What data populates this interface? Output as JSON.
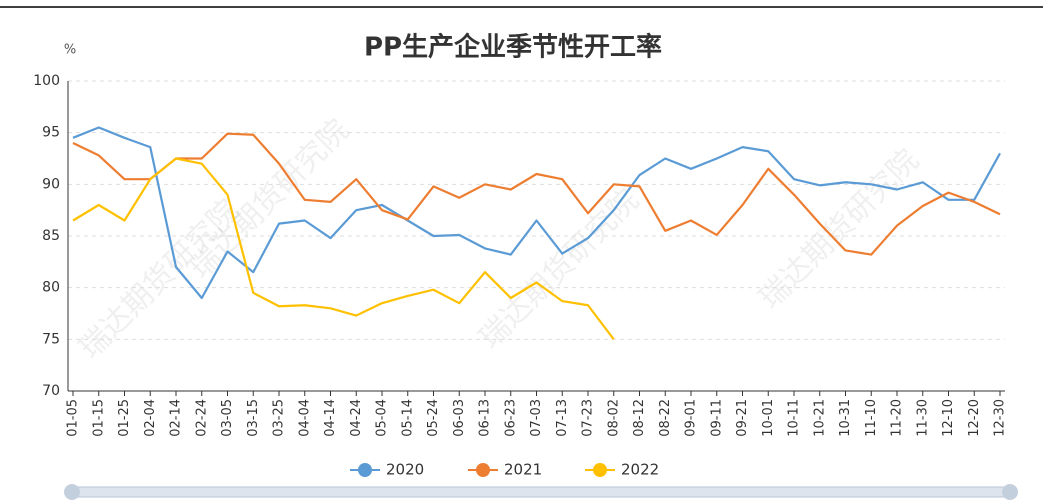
{
  "chart_data": {
    "type": "line",
    "title": "PP生产企业季节性开工率",
    "y_unit": "%",
    "watermark": "瑞达期货研究院",
    "categories": [
      "01-05",
      "01-15",
      "01-25",
      "02-04",
      "02-14",
      "02-24",
      "03-05",
      "03-15",
      "03-25",
      "04-04",
      "04-14",
      "04-24",
      "05-04",
      "05-14",
      "05-24",
      "06-03",
      "06-13",
      "06-23",
      "07-03",
      "07-13",
      "07-23",
      "08-02",
      "08-12",
      "08-22",
      "09-01",
      "09-11",
      "09-21",
      "10-01",
      "10-11",
      "10-21",
      "10-31",
      "11-10",
      "11-20",
      "11-30",
      "12-10",
      "12-20",
      "12-30"
    ],
    "series": [
      {
        "name": "2020",
        "color": "#5b9bd5",
        "values": [
          94.5,
          95.5,
          94.5,
          93.6,
          82,
          79,
          83.5,
          81.5,
          86.2,
          86.5,
          84.8,
          87.5,
          88,
          86.5,
          85,
          85.1,
          83.8,
          83.2,
          86.5,
          83.3,
          84.8,
          87.5,
          90.9,
          92.5,
          91.5,
          92.5,
          93.6,
          93.2,
          90.5,
          89.9,
          90.2,
          90,
          89.5,
          90.2,
          88.5,
          88.5,
          93
        ]
      },
      {
        "name": "2021",
        "color": "#ed7d31",
        "values": [
          94,
          92.8,
          90.5,
          90.5,
          92.5,
          92.5,
          94.9,
          94.8,
          92,
          88.5,
          88.3,
          90.5,
          87.5,
          86.6,
          89.8,
          88.7,
          90,
          89.5,
          91,
          90.5,
          87.2,
          90,
          89.8,
          85.5,
          86.5,
          85.1,
          88,
          91.5,
          89,
          86.2,
          83.6,
          83.2,
          86,
          87.9,
          89.2,
          88.3,
          87.1
        ]
      },
      {
        "name": "2022",
        "color": "#ffc000",
        "values": [
          86.5,
          88,
          86.5,
          90.5,
          92.5,
          92,
          89,
          79.5,
          78.2,
          78.3,
          78,
          77.3,
          78.5,
          79.2,
          79.8,
          78.5,
          81.5,
          79,
          80.5,
          78.7,
          78.3,
          75,
          null,
          null,
          null,
          null,
          null,
          null,
          null,
          null,
          null,
          null,
          null,
          null,
          null,
          null,
          null
        ]
      }
    ],
    "ylim": [
      70,
      100
    ],
    "yticks": [
      70,
      75,
      80,
      85,
      90,
      95,
      100
    ],
    "grid": true,
    "legend": "bottom"
  }
}
